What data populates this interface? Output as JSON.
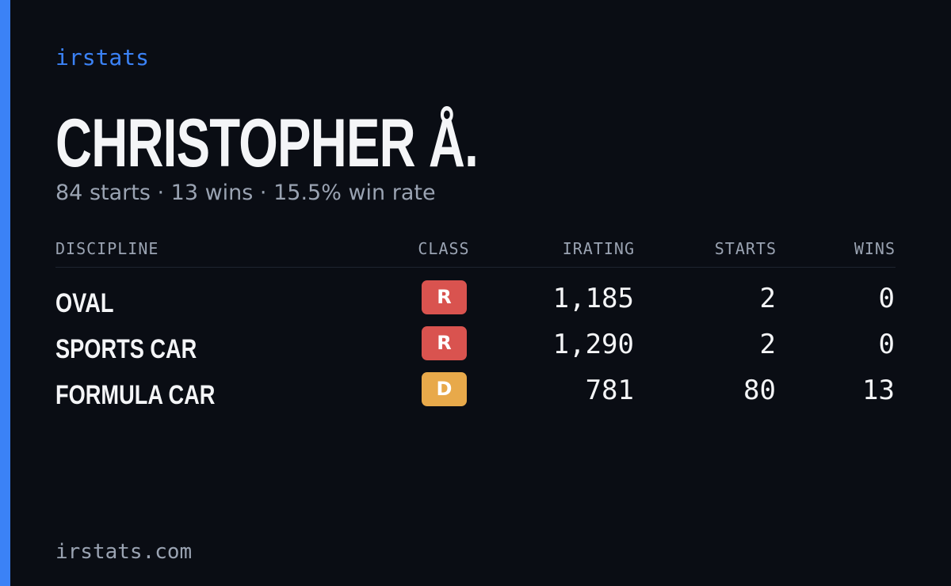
{
  "brand": "irstats",
  "header": {
    "name": "CHRISTOPHER Å.",
    "summary": "84 starts · 13 wins · 15.5% win rate"
  },
  "table": {
    "columns": [
      "DISCIPLINE",
      "CLASS",
      "IRATING",
      "STARTS",
      "WINS"
    ],
    "rows": [
      [
        "OVAL",
        "R",
        "1,185",
        "2",
        "0"
      ],
      [
        "SPORTS CAR",
        "R",
        "1,290",
        "2",
        "0"
      ],
      [
        "FORMULA CAR",
        "D",
        "781",
        "80",
        "13"
      ]
    ]
  },
  "footer": "irstats.com"
}
